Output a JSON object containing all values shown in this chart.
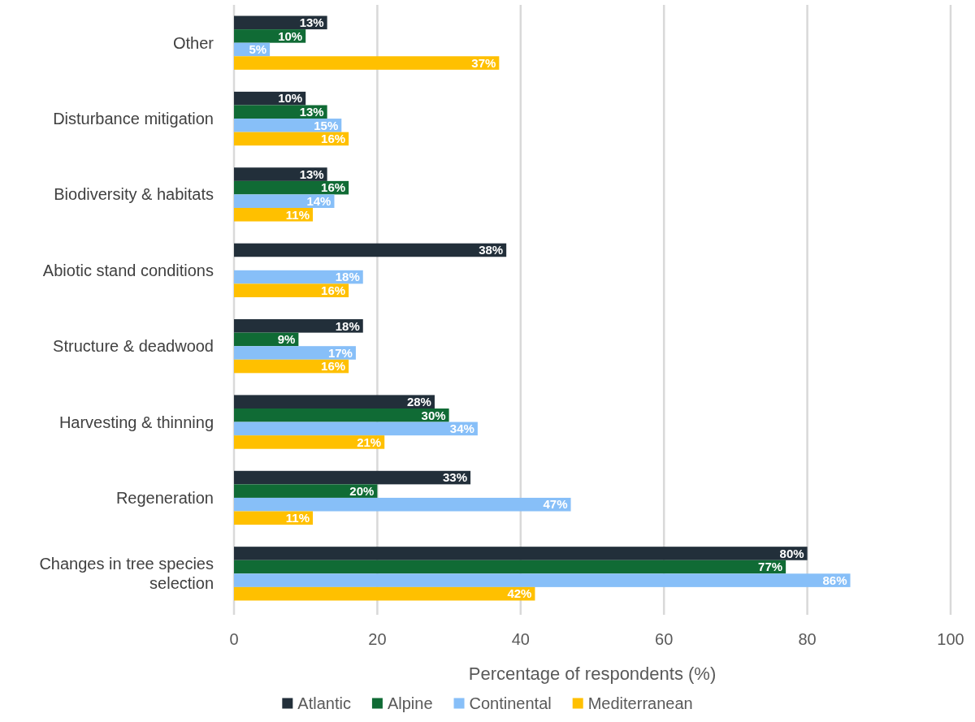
{
  "chart_data": {
    "type": "bar",
    "orientation": "horizontal",
    "xlabel": "Percentage of respondents (%)",
    "categories": [
      "Other",
      "Disturbance mitigation",
      "Biodiversity & habitats",
      "Abiotic stand conditions",
      "Structure & deadwood",
      "Harvesting & thinning",
      "Regeneration",
      "Changes in tree species selection"
    ],
    "series": [
      {
        "name": "Atlantic",
        "color": "#222f3a",
        "values": [
          13,
          10,
          13,
          38,
          18,
          28,
          33,
          80
        ],
        "value_labels": [
          "13%",
          "10%",
          "13%",
          "38%",
          "18%",
          "28%",
          "33%",
          "80%"
        ]
      },
      {
        "name": "Alpine",
        "color": "#106b35",
        "values": [
          10,
          13,
          16,
          null,
          9,
          30,
          20,
          77
        ],
        "value_labels": [
          "10%",
          "13%",
          "16%",
          null,
          "9%",
          "30%",
          "20%",
          "77%"
        ]
      },
      {
        "name": "Continental",
        "color": "#87bff8",
        "values": [
          5,
          15,
          14,
          18,
          17,
          34,
          47,
          86
        ],
        "value_labels": [
          "5%",
          "15%",
          "14%",
          "18%",
          "17%",
          "34%",
          "47%",
          "86%"
        ]
      },
      {
        "name": "Mediterranean",
        "color": "#ffc000",
        "values": [
          37,
          16,
          11,
          16,
          16,
          21,
          11,
          42
        ],
        "value_labels": [
          "37%",
          "16%",
          "11%",
          "16%",
          "16%",
          "21%",
          "11%",
          "42%"
        ]
      }
    ],
    "xlim": [
      0,
      100
    ],
    "xticks": [
      0,
      20,
      40,
      60,
      80,
      100
    ],
    "grid": "x",
    "legend": "bottom"
  }
}
